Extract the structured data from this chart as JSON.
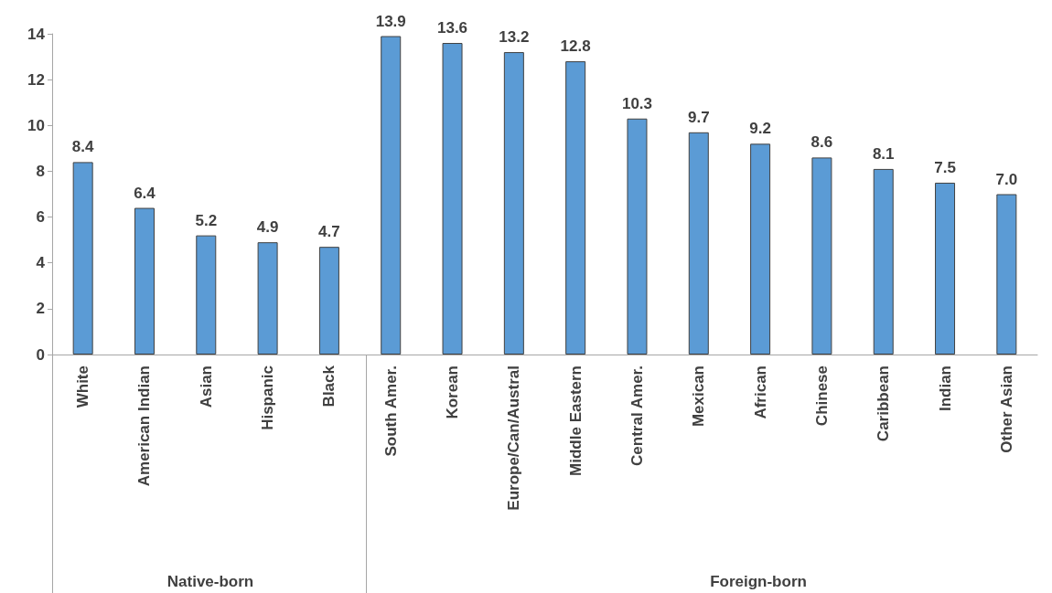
{
  "chart_data": {
    "type": "bar",
    "categories": [
      "White",
      "American Indian",
      "Asian",
      "Hispanic",
      "Black",
      "South Amer.",
      "Korean",
      "Europe/Can/Austral",
      "Middle Eastern",
      "Central Amer.",
      "Mexican",
      "African",
      "Chinese",
      "Caribbean",
      "Indian",
      "Other Asian"
    ],
    "values": [
      8.4,
      6.4,
      5.2,
      4.9,
      4.7,
      13.9,
      13.6,
      13.2,
      12.8,
      10.3,
      9.7,
      9.2,
      8.6,
      8.1,
      7.5,
      7.0
    ],
    "value_labels": [
      "8.4",
      "6.4",
      "5.2",
      "4.9",
      "4.7",
      "13.9",
      "13.6",
      "13.2",
      "12.8",
      "10.3",
      "9.7",
      "9.2",
      "8.6",
      "8.1",
      "7.5",
      "7.0"
    ],
    "color": "#5b9bd5",
    "ylim": [
      0,
      14
    ],
    "yticks": [
      0,
      2,
      4,
      6,
      8,
      10,
      12,
      14
    ],
    "grid": false,
    "annotations": [
      "Native-born",
      "Foreign-born"
    ]
  }
}
